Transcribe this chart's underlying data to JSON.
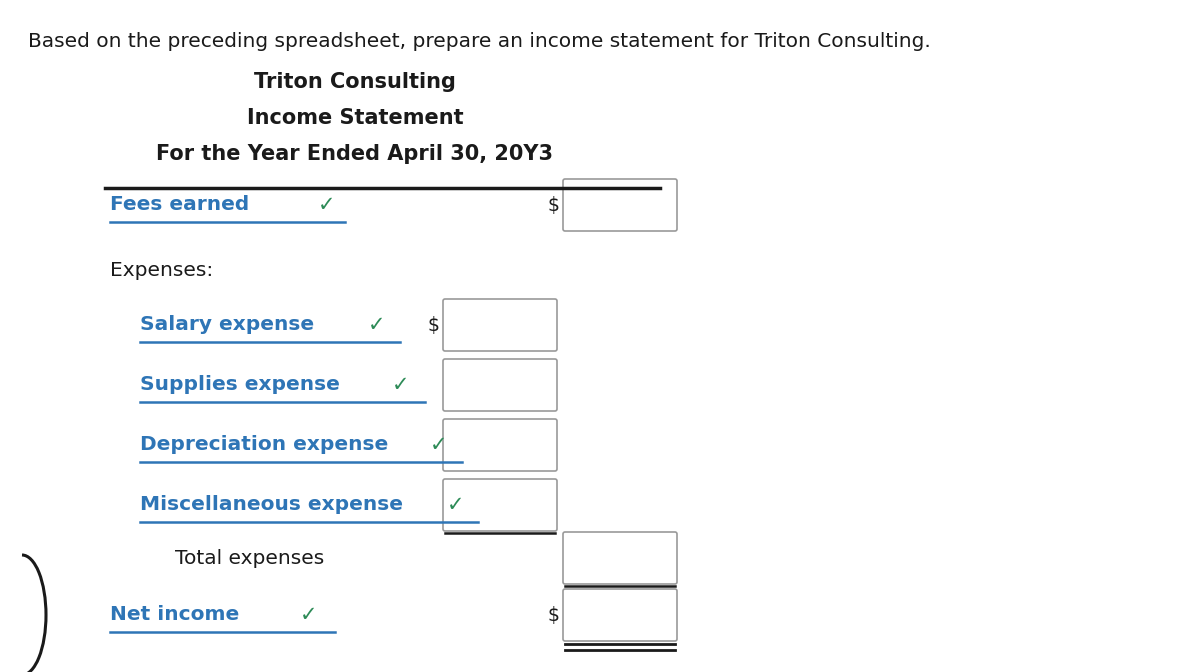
{
  "intro_text": "Based on the preceding spreadsheet, prepare an income statement for Triton Consulting.",
  "title_line1": "Triton Consulting",
  "title_line2": "Income Statement",
  "title_line3": "For the Year Ended April 30, 20Y3",
  "blue_color": "#2E75B6",
  "green_check_color": "#2D8B57",
  "black_color": "#1a1a1a",
  "bg_color": "#FFFFFF",
  "fig_w": 11.94,
  "fig_h": 6.72,
  "dpi": 100
}
